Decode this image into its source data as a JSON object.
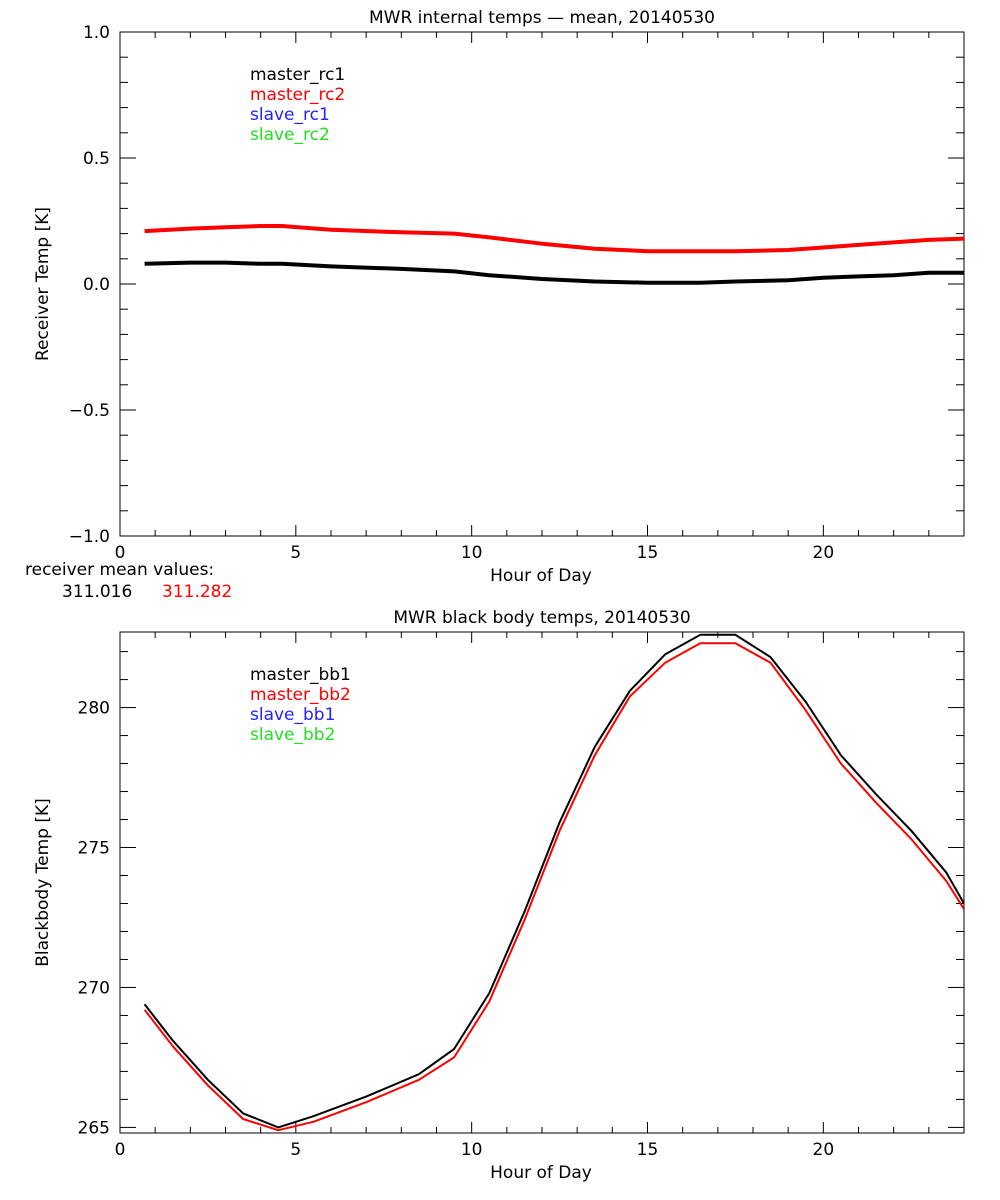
{
  "chart_data": [
    {
      "type": "line",
      "title": "MWR internal temps — mean, 20140530",
      "xlabel": "Hour of Day",
      "ylabel": "Receiver Temp [K]",
      "xlim": [
        0,
        24
      ],
      "ylim": [
        -1.0,
        1.0
      ],
      "xticks": [
        0,
        5,
        10,
        15,
        20
      ],
      "xtick_labels": [
        "0",
        "5",
        "10",
        "15",
        "20"
      ],
      "yticks": [
        -1.0,
        -0.5,
        0.0,
        0.5,
        1.0
      ],
      "ytick_labels": [
        "−1.0",
        "−0.5",
        "0.0",
        "0.5",
        "1.0"
      ],
      "legend_position": "top-left",
      "series": [
        {
          "name": "master_rc1",
          "color": "#000000",
          "x": [
            0.7,
            2,
            3,
            4,
            4.6,
            6,
            8,
            9.5,
            10.5,
            12,
            13.5,
            15,
            16.5,
            17.5,
            19,
            20,
            21,
            22,
            23,
            24
          ],
          "y": [
            0.08,
            0.085,
            0.085,
            0.08,
            0.08,
            0.07,
            0.06,
            0.05,
            0.035,
            0.02,
            0.01,
            0.005,
            0.005,
            0.01,
            0.015,
            0.025,
            0.03,
            0.035,
            0.045,
            0.045
          ]
        },
        {
          "name": "master_rc2",
          "color": "#ff0000",
          "x": [
            0.7,
            2,
            3,
            4,
            4.6,
            6,
            8,
            9.5,
            10.5,
            12,
            13.5,
            15,
            16.5,
            17.5,
            19,
            20,
            21,
            22,
            23,
            24
          ],
          "y": [
            0.21,
            0.22,
            0.225,
            0.23,
            0.23,
            0.215,
            0.205,
            0.2,
            0.185,
            0.16,
            0.14,
            0.13,
            0.13,
            0.13,
            0.135,
            0.145,
            0.155,
            0.165,
            0.175,
            0.18
          ]
        },
        {
          "name": "slave_rc1",
          "color": "#2222ff",
          "x": [],
          "y": []
        },
        {
          "name": "slave_rc2",
          "color": "#22dd22",
          "x": [],
          "y": []
        }
      ]
    },
    {
      "type": "line",
      "title": "MWR black body temps, 20140530",
      "xlabel": "Hour of Day",
      "ylabel": "Blackbody Temp [K]",
      "xlim": [
        0,
        24
      ],
      "ylim": [
        264.8,
        282.7
      ],
      "xticks": [
        0,
        5,
        10,
        15,
        20
      ],
      "xtick_labels": [
        "0",
        "5",
        "10",
        "15",
        "20"
      ],
      "yticks": [
        265,
        270,
        275,
        280
      ],
      "ytick_labels": [
        "265",
        "270",
        "275",
        "280"
      ],
      "legend_position": "top-left",
      "series": [
        {
          "name": "master_bb1",
          "color": "#000000",
          "x": [
            0.7,
            1.5,
            2.5,
            3.5,
            4.5,
            5.5,
            7,
            8.5,
            9.5,
            10.5,
            11.5,
            12.5,
            13.5,
            14.5,
            15.5,
            16.5,
            17.5,
            18.5,
            19.5,
            20.5,
            21.5,
            22.5,
            23.5,
            24
          ],
          "y": [
            269.4,
            268.1,
            266.7,
            265.5,
            265.0,
            265.4,
            266.1,
            266.9,
            267.8,
            269.8,
            272.7,
            275.9,
            278.6,
            280.6,
            281.9,
            282.6,
            282.6,
            281.8,
            280.2,
            278.3,
            276.9,
            275.6,
            274.1,
            273.0
          ]
        },
        {
          "name": "master_bb2",
          "color": "#ff0000",
          "x": [
            0.7,
            1.5,
            2.5,
            3.5,
            4.5,
            5.5,
            7,
            8.5,
            9.5,
            10.5,
            11.5,
            12.5,
            13.5,
            14.5,
            15.5,
            16.5,
            17.5,
            18.5,
            19.5,
            20.5,
            21.5,
            22.5,
            23.5,
            24
          ],
          "y": [
            269.2,
            267.9,
            266.5,
            265.3,
            264.9,
            265.2,
            265.9,
            266.7,
            267.5,
            269.5,
            272.4,
            275.6,
            278.3,
            280.4,
            281.6,
            282.3,
            282.3,
            281.6,
            279.9,
            278.0,
            276.6,
            275.3,
            273.8,
            272.8
          ]
        },
        {
          "name": "slave_bb1",
          "color": "#2222ff",
          "x": [],
          "y": []
        },
        {
          "name": "slave_bb2",
          "color": "#22dd22",
          "x": [],
          "y": []
        }
      ]
    }
  ],
  "receiver_means": {
    "caption": "receiver mean values:",
    "value1": "311.016",
    "value1_color": "#000000",
    "value2": "311.282",
    "value2_color": "#ff0000"
  }
}
